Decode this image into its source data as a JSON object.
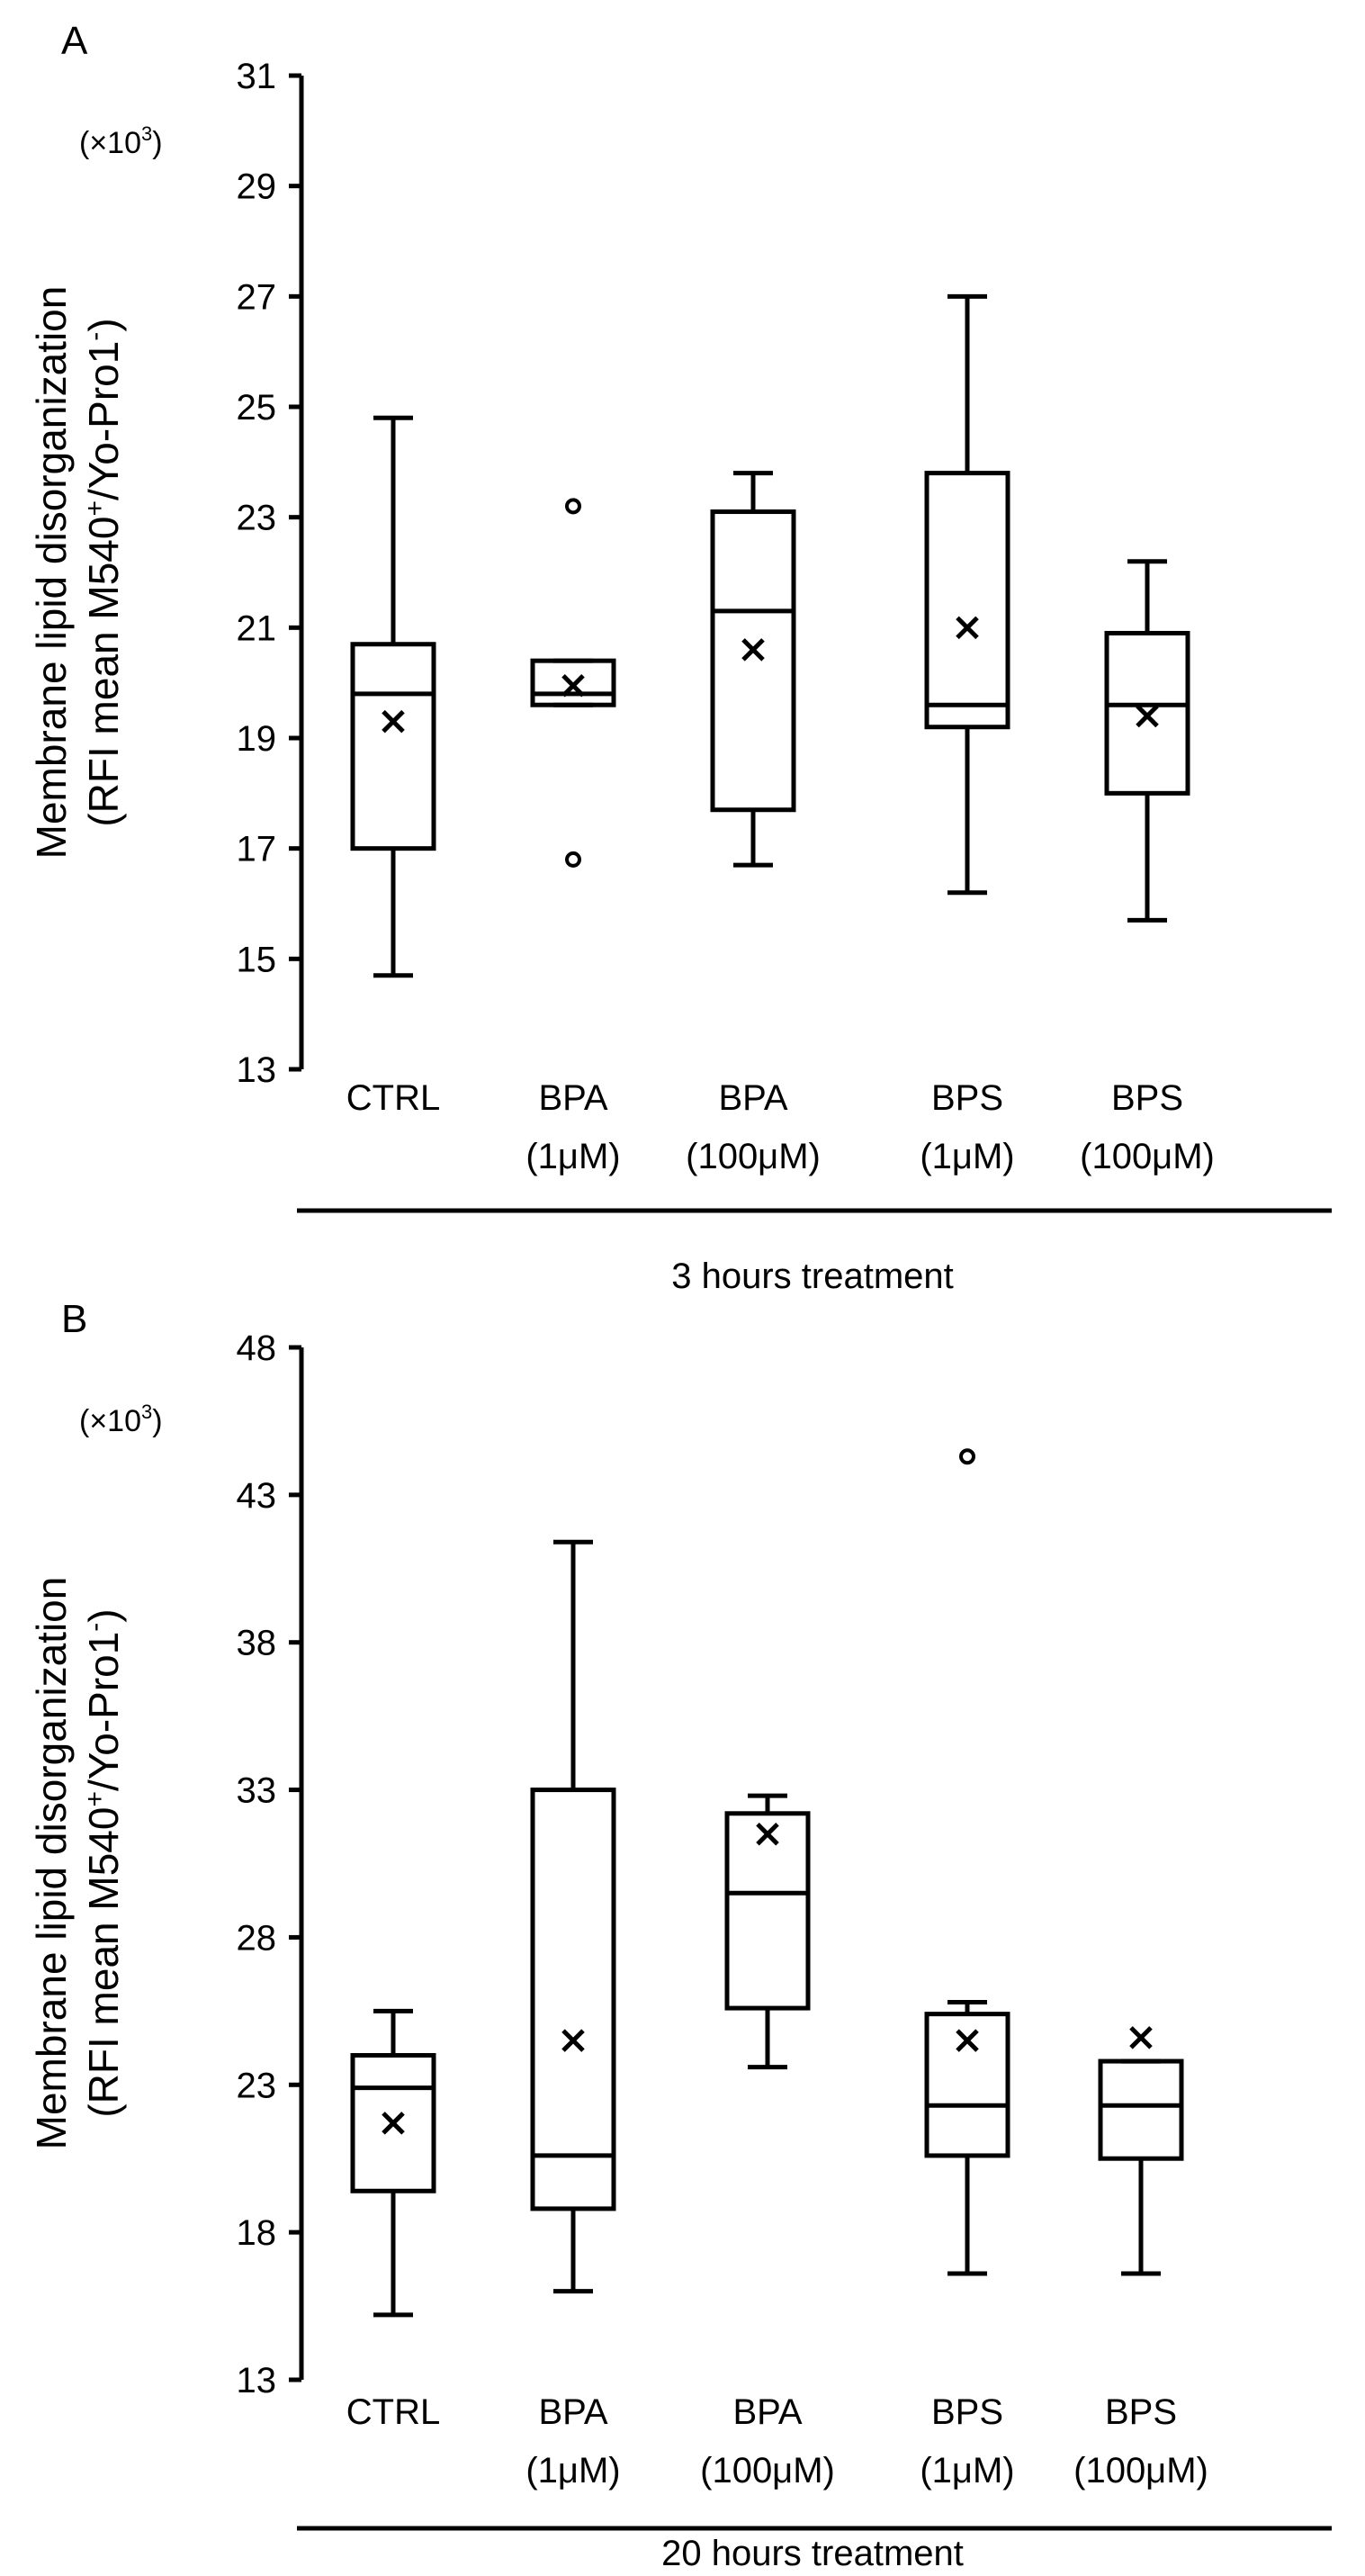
{
  "chart_data": [
    {
      "type": "box",
      "panel_label": "A",
      "group_label": "3 hours treatment",
      "ylabel_line1": "Membrane lipid disorganization",
      "ylabel_line2": "(RFI mean M540",
      "ylabel_sup1": "+",
      "ylabel_mid": "/Yo-Pro1",
      "ylabel_sup2": "-",
      "ylabel_end": ")",
      "scale_note": "(×10",
      "scale_sup": "3",
      "scale_end": ")",
      "ylim": [
        13,
        31
      ],
      "yticks": [
        13,
        15,
        17,
        19,
        21,
        23,
        25,
        27,
        29,
        31
      ],
      "categories": [
        {
          "line1": "CTRL",
          "line2": "",
          "whisker_low": 14.7,
          "q1": 17.0,
          "median": 19.8,
          "q3": 20.7,
          "whisker_high": 24.8,
          "mean": 19.3,
          "outliers": []
        },
        {
          "line1": "BPA",
          "line2": "(1μM)",
          "whisker_low": 19.6,
          "q1": 19.6,
          "median": 19.8,
          "q3": 20.4,
          "whisker_high": 20.4,
          "mean": 19.95,
          "outliers": [
            23.2,
            16.8
          ]
        },
        {
          "line1": "BPA",
          "line2": "(100μM)",
          "whisker_low": 16.7,
          "q1": 17.7,
          "median": 21.3,
          "q3": 23.1,
          "whisker_high": 23.8,
          "mean": 20.6,
          "outliers": []
        },
        {
          "line1": "BPS",
          "line2": "(1μM)",
          "whisker_low": 16.2,
          "q1": 19.2,
          "median": 19.6,
          "q3": 23.8,
          "whisker_high": 27.0,
          "mean": 21.0,
          "outliers": []
        },
        {
          "line1": "BPS",
          "line2": "(100μM)",
          "whisker_low": 15.7,
          "q1": 18.0,
          "median": 19.6,
          "q3": 20.9,
          "whisker_high": 22.2,
          "mean": 19.4,
          "outliers": []
        }
      ]
    },
    {
      "type": "box",
      "panel_label": "B",
      "group_label": "20 hours treatment",
      "ylabel_line1": "Membrane lipid disorganization",
      "ylabel_line2": "(RFI mean M540",
      "ylabel_sup1": "+",
      "ylabel_mid": "/Yo-Pro1",
      "ylabel_sup2": "-",
      "ylabel_end": ")",
      "scale_note": "(×10",
      "scale_sup": "3",
      "scale_end": ")",
      "ylim": [
        13,
        48
      ],
      "yticks": [
        13,
        18,
        23,
        28,
        33,
        38,
        43,
        48
      ],
      "categories": [
        {
          "line1": "CTRL",
          "line2": "",
          "whisker_low": 15.2,
          "q1": 19.4,
          "median": 22.9,
          "q3": 24.0,
          "whisker_high": 25.5,
          "mean": 21.7,
          "outliers": []
        },
        {
          "line1": "BPA",
          "line2": "(1μM)",
          "whisker_low": 16.0,
          "q1": 18.8,
          "median": 20.6,
          "q3": 33.0,
          "whisker_high": 41.4,
          "mean": 24.5,
          "outliers": []
        },
        {
          "line1": "BPA",
          "line2": "(100μM)",
          "whisker_low": 23.6,
          "q1": 25.6,
          "median": 29.5,
          "q3": 32.2,
          "whisker_high": 32.8,
          "mean": 31.5,
          "outliers": []
        },
        {
          "line1": "BPS",
          "line2": "(1μM)",
          "whisker_low": 16.6,
          "q1": 20.6,
          "median": 22.3,
          "q3": 25.4,
          "whisker_high": 25.8,
          "mean": 24.5,
          "outliers": [
            44.3
          ]
        },
        {
          "line1": "BPS",
          "line2": "(100μM)",
          "whisker_low": 16.6,
          "q1": 20.5,
          "median": 22.3,
          "q3": 23.8,
          "whisker_high": 23.8,
          "mean": 24.6,
          "outliers": []
        }
      ]
    }
  ]
}
